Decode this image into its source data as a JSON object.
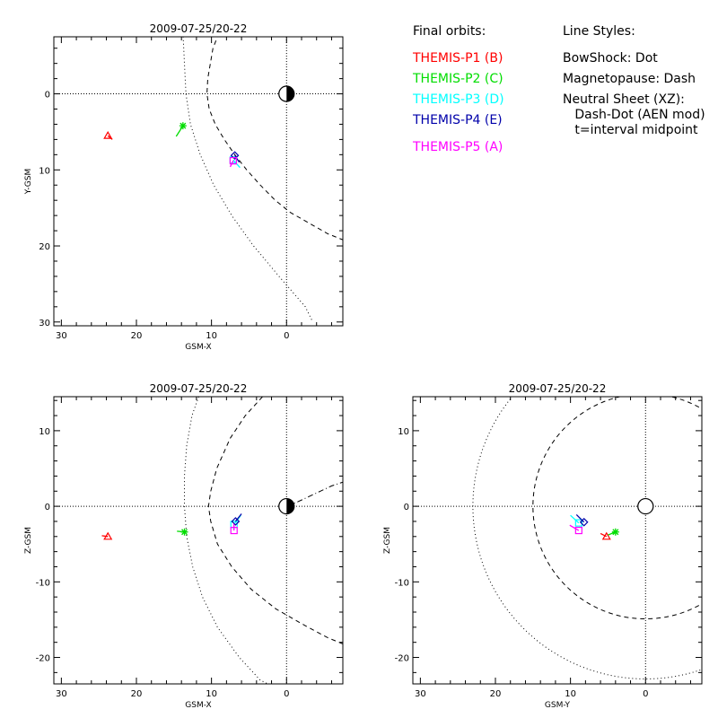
{
  "chart_data": [
    {
      "type": "scatter",
      "panel": "xy",
      "title": "2009-07-25/20-22",
      "xlabel": "GSM-X",
      "ylabel": "Y-GSM",
      "xlim": [
        31,
        -7.5
      ],
      "ylim": [
        -7.5,
        30.5
      ],
      "x_reversed": true,
      "y_reversed": true,
      "xticks": [
        30,
        20,
        10,
        0
      ],
      "yticks": [
        0,
        10,
        20,
        30
      ],
      "xtick_labels": [
        "30",
        "20",
        "10",
        "0"
      ],
      "ytick_labels": [
        "0",
        "10",
        "20",
        "30"
      ],
      "reference_lines": {
        "x": 0,
        "y": 0,
        "style": "dotted"
      },
      "earth": {
        "x": 0,
        "y": 0,
        "r": 1.0,
        "half_dark": "right"
      },
      "boundaries": [
        {
          "name": "BowShock",
          "style": "dotted",
          "points": [
            [
              13.8,
              -8
            ],
            [
              13.6,
              -4
            ],
            [
              13.4,
              0
            ],
            [
              12.8,
              4
            ],
            [
              11.5,
              8
            ],
            [
              9.7,
              12
            ],
            [
              7.3,
              16
            ],
            [
              4.4,
              20
            ],
            [
              1,
              24
            ],
            [
              -2.5,
              28
            ],
            [
              -3.5,
              30
            ]
          ]
        },
        {
          "name": "Magnetopause",
          "style": "dashed",
          "points": [
            [
              9,
              -8
            ],
            [
              9.8,
              -6
            ],
            [
              10.5,
              -2
            ],
            [
              10.6,
              0
            ],
            [
              10.3,
              2
            ],
            [
              9.5,
              4
            ],
            [
              8.3,
              6
            ],
            [
              6.9,
              8
            ],
            [
              5.3,
              10
            ],
            [
              3.5,
              12
            ],
            [
              1.5,
              14
            ],
            [
              -0.5,
              15.6
            ],
            [
              -3,
              17
            ],
            [
              -5.5,
              18.4
            ],
            [
              -7.5,
              19.2
            ]
          ]
        }
      ],
      "spacecraft": [
        {
          "probe": "THEMIS-P1 (B)",
          "color": "#ff0000",
          "symbol": "triangle",
          "x": 23.8,
          "y": 5.5,
          "track": [
            [
              23.8,
              5.5
            ],
            [
              23.2,
              6.0
            ]
          ]
        },
        {
          "probe": "THEMIS-P2 (C)",
          "color": "#00dd00",
          "symbol": "asterisk",
          "x": 13.8,
          "y": 4.2,
          "track": [
            [
              13.8,
              4.2
            ],
            [
              14.7,
              5.6
            ]
          ]
        },
        {
          "probe": "THEMIS-P3 (D)",
          "color": "#00ffff",
          "symbol": "square",
          "x": 7.1,
          "y": 8.7,
          "track": [
            [
              7.1,
              8.7
            ],
            [
              6.2,
              9.7
            ]
          ]
        },
        {
          "probe": "THEMIS-P4 (E)",
          "color": "#0000aa",
          "symbol": "diamond",
          "x": 6.9,
          "y": 8.1,
          "track": [
            [
              6.9,
              8.1
            ],
            [
              6.3,
              9.0
            ]
          ]
        },
        {
          "probe": "THEMIS-P5 (A)",
          "color": "#ff00ff",
          "symbol": "square",
          "x": 7.1,
          "y": 8.8,
          "track": [
            [
              7.1,
              8.8
            ],
            [
              7.5,
              9.6
            ]
          ]
        }
      ]
    },
    {
      "type": "scatter",
      "panel": "xz",
      "title": "2009-07-25/20-22",
      "xlabel": "GSM-X",
      "ylabel": "Z-GSM",
      "xlim": [
        31,
        -7.5
      ],
      "ylim": [
        -23.5,
        14.5
      ],
      "x_reversed": true,
      "y_reversed": false,
      "xticks": [
        30,
        20,
        10,
        0
      ],
      "yticks": [
        10,
        0,
        -10,
        -20
      ],
      "xtick_labels": [
        "30",
        "20",
        "10",
        "0"
      ],
      "ytick_labels": [
        "10",
        "0",
        "-10",
        "-20"
      ],
      "reference_lines": {
        "x": 0,
        "y": 0,
        "style": "dotted"
      },
      "earth": {
        "x": 0,
        "y": 0,
        "r": 1.0,
        "half_dark": "right"
      },
      "boundaries": [
        {
          "name": "BowShock",
          "style": "dotted",
          "points": [
            [
              11.7,
              14.5
            ],
            [
              12.6,
              12
            ],
            [
              13.3,
              8
            ],
            [
              13.6,
              4
            ],
            [
              13.6,
              0
            ],
            [
              13.3,
              -4
            ],
            [
              12.5,
              -8
            ],
            [
              11.2,
              -12
            ],
            [
              9.2,
              -16
            ],
            [
              6.3,
              -20
            ],
            [
              3.5,
              -23
            ],
            [
              2.5,
              -23.5
            ]
          ]
        },
        {
          "name": "Magnetopause",
          "style": "dashed",
          "points": [
            [
              3.2,
              14.5
            ],
            [
              5.5,
              12
            ],
            [
              7.5,
              9
            ],
            [
              9.3,
              5
            ],
            [
              10.1,
              2
            ],
            [
              10.4,
              0
            ],
            [
              10.1,
              -2
            ],
            [
              9.2,
              -5
            ],
            [
              7.3,
              -8
            ],
            [
              4.7,
              -11
            ],
            [
              1.4,
              -13.6
            ],
            [
              -2.5,
              -15.8
            ],
            [
              -5.5,
              -17.4
            ],
            [
              -7.5,
              -18.2
            ]
          ]
        },
        {
          "name": "NeutralSheet",
          "style": "dashdot",
          "points": [
            [
              0,
              0
            ],
            [
              -1.5,
              0.6
            ],
            [
              -3,
              1.3
            ],
            [
              -4.5,
              2.0
            ],
            [
              -6,
              2.7
            ],
            [
              -7.5,
              3.2
            ]
          ]
        }
      ],
      "spacecraft": [
        {
          "probe": "THEMIS-P1 (B)",
          "color": "#ff0000",
          "symbol": "triangle",
          "x": 23.8,
          "y": -4.0,
          "track": [
            [
              23.8,
              -4.0
            ],
            [
              24.6,
              -3.9
            ]
          ]
        },
        {
          "probe": "THEMIS-P2 (C)",
          "color": "#00dd00",
          "symbol": "asterisk",
          "x": 13.6,
          "y": -3.4,
          "track": [
            [
              13.6,
              -3.4
            ],
            [
              14.6,
              -3.3
            ]
          ]
        },
        {
          "probe": "THEMIS-P3 (D)",
          "color": "#00ffff",
          "symbol": "square",
          "x": 7.0,
          "y": -2.4,
          "track": [
            [
              7.0,
              -2.4
            ],
            [
              6.1,
              -1.2
            ]
          ]
        },
        {
          "probe": "THEMIS-P4 (E)",
          "color": "#0000aa",
          "symbol": "diamond",
          "x": 6.8,
          "y": -2.0,
          "track": [
            [
              6.8,
              -2.0
            ],
            [
              6.0,
              -1.0
            ]
          ]
        },
        {
          "probe": "THEMIS-P5 (A)",
          "color": "#ff00ff",
          "symbol": "square",
          "x": 7.0,
          "y": -3.2,
          "track": [
            [
              7.0,
              -3.2
            ],
            [
              7.0,
              -2.3
            ]
          ]
        }
      ]
    },
    {
      "type": "scatter",
      "panel": "yz",
      "title": "2009-07-25/20-22",
      "xlabel": "GSM-Y",
      "ylabel": "Z-GSM",
      "xlim": [
        31,
        -7.5
      ],
      "ylim": [
        -23.5,
        14.5
      ],
      "x_reversed": true,
      "y_reversed": false,
      "xticks": [
        30,
        20,
        10,
        0
      ],
      "yticks": [
        10,
        0,
        -10,
        -20
      ],
      "xtick_labels": [
        "30",
        "20",
        "10",
        "0"
      ],
      "ytick_labels": [
        "10",
        "0",
        "-10",
        "-20"
      ],
      "reference_lines": {
        "x": 0,
        "y": 0,
        "style": "dotted"
      },
      "earth": {
        "x": 0,
        "y": 0,
        "r": 1.0,
        "half_dark": "none"
      },
      "boundaries": [
        {
          "name": "BowShock",
          "style": "dotted",
          "circle": {
            "cx": 0,
            "cy": 0,
            "r": 23
          }
        },
        {
          "name": "Magnetopause",
          "style": "dashed",
          "circle": {
            "cx": 0,
            "cy": 0,
            "r": 15
          }
        }
      ],
      "spacecraft": [
        {
          "probe": "THEMIS-P1 (B)",
          "color": "#ff0000",
          "symbol": "triangle",
          "x": 5.2,
          "y": -4.0,
          "track": [
            [
              5.2,
              -4.0
            ],
            [
              6.0,
              -3.6
            ]
          ]
        },
        {
          "probe": "THEMIS-P2 (C)",
          "color": "#00dd00",
          "symbol": "asterisk",
          "x": 4.0,
          "y": -3.4,
          "track": [
            [
              4.0,
              -3.4
            ],
            [
              5.0,
              -3.8
            ]
          ]
        },
        {
          "probe": "THEMIS-P3 (D)",
          "color": "#00ffff",
          "symbol": "square",
          "x": 8.9,
          "y": -2.2,
          "track": [
            [
              8.9,
              -2.2
            ],
            [
              10.0,
              -1.2
            ]
          ]
        },
        {
          "probe": "THEMIS-P4 (E)",
          "color": "#0000aa",
          "symbol": "diamond",
          "x": 8.2,
          "y": -2.1,
          "track": [
            [
              8.2,
              -2.1
            ],
            [
              9.2,
              -1.1
            ]
          ]
        },
        {
          "probe": "THEMIS-P5 (A)",
          "color": "#ff00ff",
          "symbol": "square",
          "x": 8.9,
          "y": -3.2,
          "track": [
            [
              8.9,
              -3.2
            ],
            [
              10.1,
              -2.5
            ]
          ]
        }
      ]
    }
  ],
  "legend": {
    "orbits_title": "Final orbits:",
    "orbits": [
      {
        "label": "THEMIS-P1 (B)",
        "color": "#ff0000"
      },
      {
        "label": "THEMIS-P2 (C)",
        "color": "#00dd00"
      },
      {
        "label": "THEMIS-P3 (D)",
        "color": "#00ffff"
      },
      {
        "label": "THEMIS-P4 (E)",
        "color": "#0000aa"
      },
      {
        "label": "THEMIS-P5 (A)",
        "color": "#ff00ff"
      }
    ],
    "styles_title": "Line Styles:",
    "styles": [
      "BowShock: Dot",
      "Magnetopause: Dash",
      "Neutral Sheet (XZ):",
      "   Dash-Dot (AEN mod)",
      "   t=interval midpoint"
    ]
  }
}
